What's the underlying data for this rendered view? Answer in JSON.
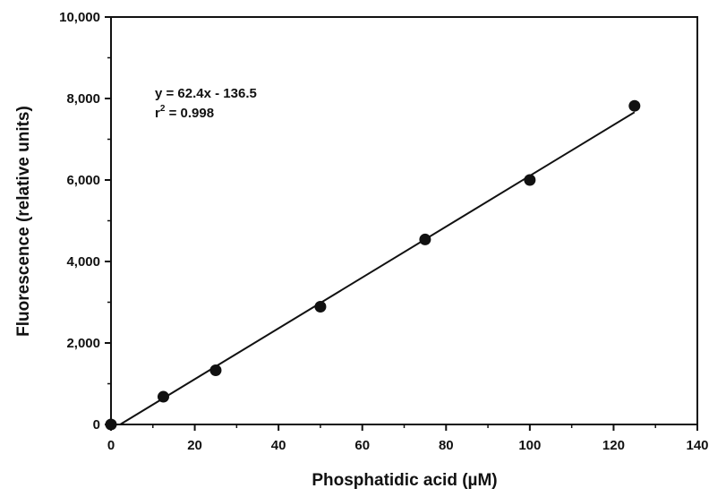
{
  "chart_data": {
    "type": "scatter",
    "xlabel": "Phosphatidic acid (µM)",
    "ylabel": "Fluorescence (relative units)",
    "xlim": [
      0,
      140
    ],
    "ylim": [
      0,
      10000
    ],
    "x_ticks": [
      0,
      20,
      40,
      60,
      80,
      100,
      120,
      140
    ],
    "x_tick_labels": [
      "0",
      "20",
      "40",
      "60",
      "80",
      "100",
      "120",
      "140"
    ],
    "y_ticks": [
      0,
      2000,
      4000,
      6000,
      8000,
      10000
    ],
    "y_tick_labels": [
      "0",
      "2,000",
      "4,000",
      "6,000",
      "8,000",
      "10,000"
    ],
    "grid": false,
    "series": [
      {
        "points": [
          {
            "x": 0,
            "y": 0
          },
          {
            "x": 12.5,
            "y": 680
          },
          {
            "x": 25,
            "y": 1330
          },
          {
            "x": 50,
            "y": 2890
          },
          {
            "x": 75,
            "y": 4540
          },
          {
            "x": 100,
            "y": 6000
          },
          {
            "x": 125,
            "y": 7820
          }
        ]
      }
    ],
    "fit": {
      "slope": 62.4,
      "intercept": -136.5,
      "x_range": [
        0,
        125
      ]
    },
    "annotation": {
      "equation": "y = 62.4x - 136.5",
      "r2_base": "r",
      "r2_sup": "2",
      "r2_value": " = 0.998"
    }
  }
}
